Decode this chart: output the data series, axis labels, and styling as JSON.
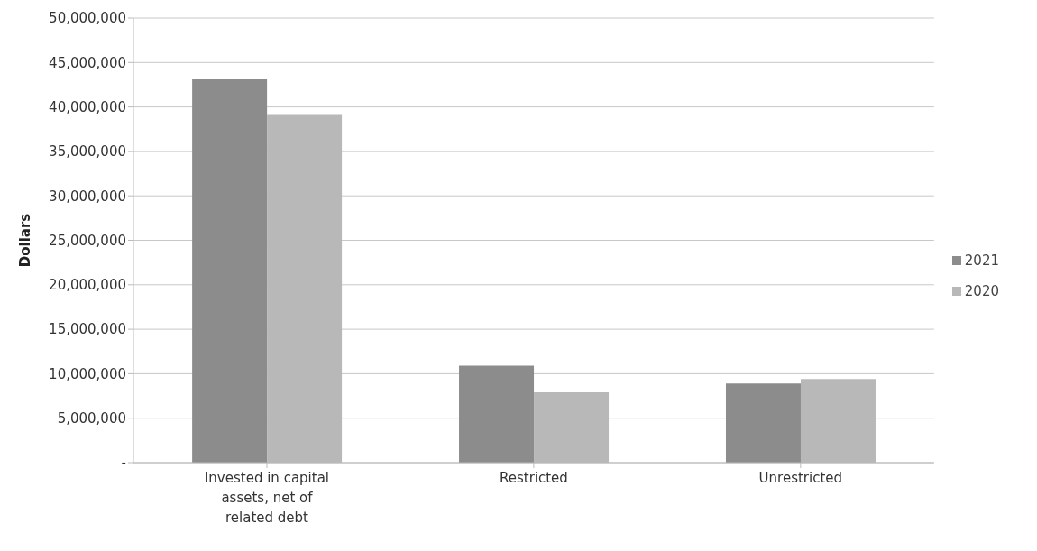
{
  "chart_data": {
    "type": "bar",
    "ylabel": "Dollars",
    "categories": [
      "Invested in capital assets, net of related debt",
      "Restricted",
      "Unrestricted"
    ],
    "series": [
      {
        "name": "2021",
        "color": "#8c8c8c",
        "values": [
          43100000,
          10900000,
          8900000
        ]
      },
      {
        "name": "2020",
        "color": "#b8b8b8",
        "values": [
          39200000,
          7900000,
          9400000
        ]
      }
    ],
    "ylim": [
      0,
      50000000
    ],
    "yticks": [
      {
        "value": 0,
        "label": "-"
      },
      {
        "value": 5000000,
        "label": "5,000,000"
      },
      {
        "value": 10000000,
        "label": "10,000,000"
      },
      {
        "value": 15000000,
        "label": "15,000,000"
      },
      {
        "value": 20000000,
        "label": "20,000,000"
      },
      {
        "value": 25000000,
        "label": "25,000,000"
      },
      {
        "value": 30000000,
        "label": "30,000,000"
      },
      {
        "value": 35000000,
        "label": "35,000,000"
      },
      {
        "value": 40000000,
        "label": "40,000,000"
      },
      {
        "value": 45000000,
        "label": "45,000,000"
      },
      {
        "value": 50000000,
        "label": "50,000,000"
      }
    ],
    "grid": "y",
    "legend": "right"
  }
}
